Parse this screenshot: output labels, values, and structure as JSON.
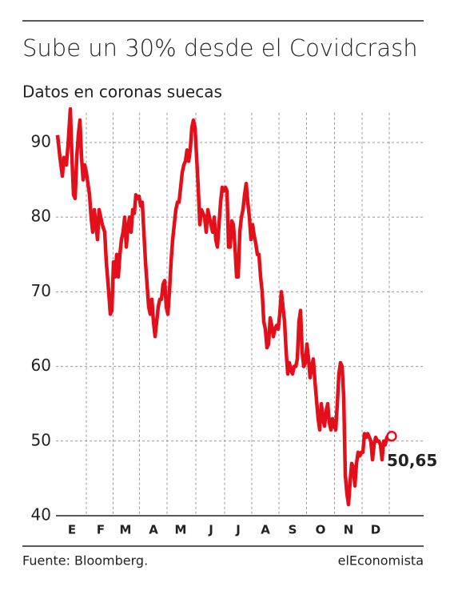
{
  "chart_data": {
    "type": "line",
    "title": "Sube un 30% desde el Covidcrash",
    "subtitle": "Datos en coronas suecas",
    "source": "Fuente: Bloomberg.",
    "brand": "elEconomista",
    "end_label": "50,65",
    "x": [
      0,
      1.5,
      3,
      4,
      5.5,
      6.5,
      8,
      9,
      10,
      11,
      12,
      13,
      14,
      15,
      16,
      17,
      18,
      19,
      20,
      21,
      22,
      23,
      24,
      25,
      26,
      27,
      28,
      29.5,
      30.5,
      32,
      33,
      34,
      35,
      36,
      37,
      38,
      39,
      40,
      41,
      42,
      43,
      44,
      45,
      46,
      47,
      48,
      49,
      50,
      51,
      52,
      53,
      54,
      55,
      56,
      57,
      58,
      59,
      60,
      61,
      62,
      63,
      64,
      65,
      66,
      67,
      68,
      69,
      70,
      71,
      72,
      73,
      74,
      75,
      76,
      77,
      78,
      79,
      80,
      81,
      82,
      83,
      84,
      85,
      86,
      87,
      88,
      89,
      90,
      91,
      92,
      93,
      94,
      95,
      96,
      97,
      98,
      99,
      100,
      101,
      102,
      103,
      104,
      105,
      106,
      107,
      108,
      109,
      110,
      111,
      112,
      113,
      114,
      115,
      116,
      117,
      118,
      119,
      120,
      121,
      122,
      123,
      124,
      125,
      126,
      127,
      128,
      129,
      130,
      131,
      132,
      133,
      134,
      135,
      136,
      137,
      138,
      139,
      140,
      141,
      142,
      143,
      144,
      145,
      146,
      147,
      148,
      149,
      150,
      151,
      152,
      153,
      154,
      155,
      156,
      157,
      158,
      159,
      160,
      161,
      162,
      163,
      164,
      165,
      166,
      167,
      168,
      169,
      170,
      171,
      172,
      173,
      174,
      175,
      176,
      177,
      178,
      179,
      180,
      181,
      182,
      183,
      184,
      185,
      186,
      187,
      188,
      189,
      190,
      191,
      192,
      193,
      194,
      195,
      196,
      197,
      198,
      199,
      200,
      201,
      202,
      203,
      204,
      205,
      206,
      207,
      209
    ],
    "series": [
      {
        "color": "#e3101b",
        "values": [
          91,
          88,
          85.5,
          88,
          87,
          89.5,
          94.5,
          88,
          83,
          82.5,
          88,
          91,
          93,
          88,
          85,
          87,
          86,
          84.5,
          83,
          80,
          78,
          81,
          79,
          77,
          81,
          80,
          79,
          78,
          74,
          70,
          67,
          67.5,
          74,
          72,
          75,
          72,
          75,
          77,
          78,
          80,
          76,
          78.5,
          80,
          78,
          81,
          80.5,
          83,
          82.5,
          82.8,
          81.5,
          82,
          78,
          74,
          71,
          68,
          67,
          69,
          66,
          64,
          66,
          68,
          69,
          69,
          71,
          71.5,
          68,
          67,
          70,
          74,
          77,
          79,
          81,
          82,
          82,
          84,
          86,
          87,
          87.5,
          89,
          87.5,
          89,
          92,
          93,
          92,
          88,
          84,
          79,
          81,
          80.5,
          80,
          78,
          81,
          80,
          79,
          78,
          80,
          77,
          76,
          79,
          82,
          84,
          83.5,
          84,
          83.5,
          76,
          76,
          79.5,
          79,
          76,
          72,
          72,
          78,
          80,
          81,
          83,
          84.5,
          82,
          80,
          77,
          79,
          77.5,
          76.5,
          75,
          75,
          72,
          70,
          66,
          65,
          62.5,
          63,
          66.5,
          65.5,
          64,
          65,
          65.5,
          65,
          67,
          70,
          68,
          66,
          62,
          59,
          60.5,
          59.5,
          59,
          60,
          60,
          61,
          66,
          67.5,
          62,
          60,
          60.5,
          63,
          61,
          58.5,
          60,
          61,
          58,
          55.5,
          53,
          51.5,
          55,
          53,
          52,
          54,
          55,
          52.5,
          51.5,
          53,
          52,
          51.5,
          55,
          59,
          60.5,
          60,
          56,
          45.5,
          43,
          41.5,
          44.5,
          47,
          46.5,
          44,
          47,
          48.5,
          48,
          48.5,
          48.5,
          51,
          50.5,
          51,
          50.5,
          50,
          47.5,
          49.5,
          50.5,
          50,
          50,
          49.5,
          47.5,
          50,
          49.5,
          50.5,
          50.7,
          50.65
        ]
      }
    ],
    "xlim": [
      -1,
      229
    ],
    "xticks": [
      {
        "value": 9,
        "label": "E"
      },
      {
        "value": 27,
        "label": "F"
      },
      {
        "value": 42.5,
        "label": "M"
      },
      {
        "value": 60,
        "label": "A"
      },
      {
        "value": 77,
        "label": "M"
      },
      {
        "value": 96,
        "label": "J"
      },
      {
        "value": 113,
        "label": "J"
      },
      {
        "value": 130,
        "label": "A"
      },
      {
        "value": 147,
        "label": "S"
      },
      {
        "value": 164.5,
        "label": "O"
      },
      {
        "value": 182,
        "label": "N"
      },
      {
        "value": 199,
        "label": "D"
      }
    ],
    "ylim": [
      40,
      94
    ],
    "yticks": [
      40,
      50,
      60,
      70,
      80,
      90
    ],
    "grid": true
  }
}
